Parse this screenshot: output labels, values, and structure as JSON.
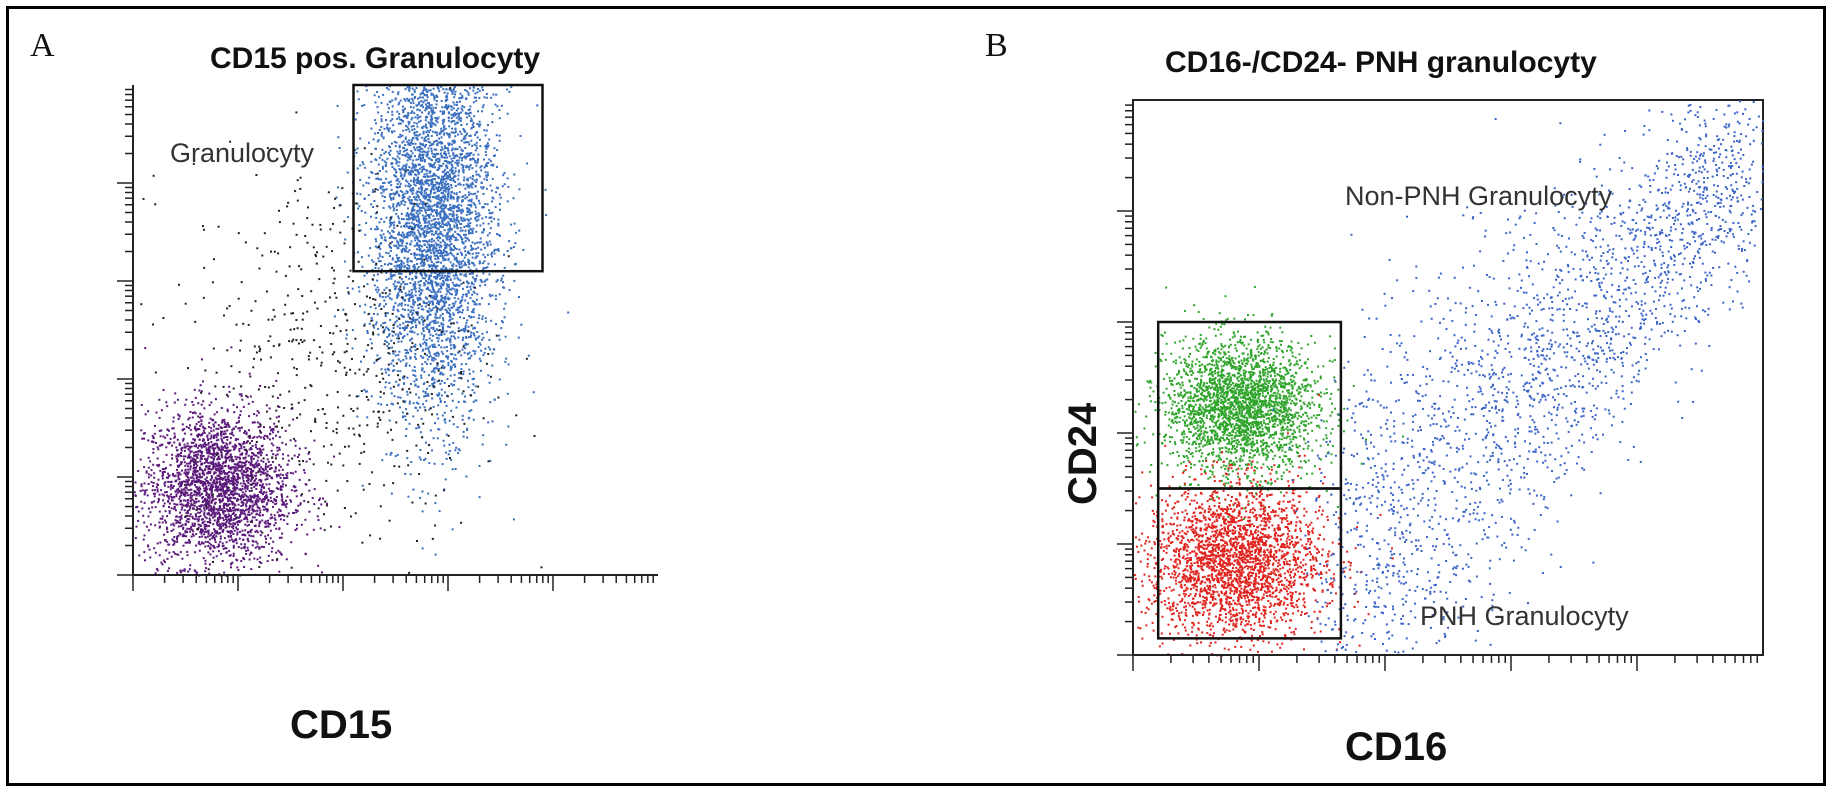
{
  "chart_data": [
    {
      "type": "scatter",
      "panel": "A",
      "title": "CD15 pos. Granulocyty",
      "xlabel": "CD15",
      "ylabel": "",
      "x_scale": "log",
      "grid": false,
      "annotations": [
        "Granulocyty"
      ],
      "gates": [
        {
          "name": "Granulocyty",
          "x_range": [
            0.42,
            0.78
          ],
          "y_range": [
            0.62,
            1.0
          ]
        }
      ],
      "series": [
        {
          "color": "#5b1a7a",
          "center": [
            0.16,
            0.18
          ],
          "spread": [
            0.07,
            0.08
          ],
          "count": 2600
        },
        {
          "color": "#3a6fbf",
          "center": [
            0.57,
            0.72
          ],
          "spread": [
            0.06,
            0.2
          ],
          "count": 4200
        },
        {
          "color": "#222222",
          "center": [
            0.38,
            0.45
          ],
          "spread": [
            0.14,
            0.2
          ],
          "count": 520
        }
      ]
    },
    {
      "type": "scatter",
      "panel": "B",
      "title": "CD16-/CD24- PNH granulocyty",
      "xlabel": "CD16",
      "ylabel": "CD24",
      "x_scale": "log",
      "y_scale": "log",
      "grid": false,
      "annotations": [
        "Non-PNH Granulocyty",
        "PNH Granulocyty"
      ],
      "gates": [
        {
          "name": "Non-PNH Granulocyty",
          "x_range": [
            0.04,
            0.33
          ],
          "y_range": [
            0.3,
            0.6
          ]
        },
        {
          "name": "PNH Granulocyty",
          "x_range": [
            0.04,
            0.33
          ],
          "y_range": [
            0.03,
            0.3
          ]
        }
      ],
      "series": [
        {
          "color": "#2ea42a",
          "center": [
            0.17,
            0.45
          ],
          "spread": [
            0.06,
            0.06
          ],
          "count": 2600
        },
        {
          "color": "#e0221d",
          "center": [
            0.16,
            0.17
          ],
          "spread": [
            0.07,
            0.07
          ],
          "count": 2600
        },
        {
          "color": "#3a64c8",
          "center": [
            0.45,
            0.45
          ],
          "spread": [
            0.2,
            0.15
          ],
          "count": 2400
        }
      ]
    }
  ]
}
